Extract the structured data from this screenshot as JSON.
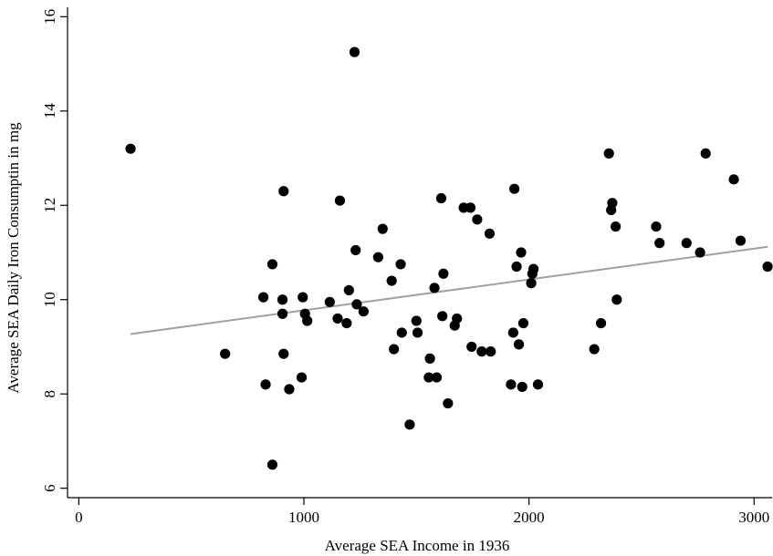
{
  "chart_data": {
    "type": "scatter",
    "title": "",
    "xlabel": "Average SEA Income in 1936",
    "ylabel": "Average SEA Daily Iron Consumptin in mg",
    "xlim": [
      -50,
      3080
    ],
    "ylim": [
      5.8,
      16.2
    ],
    "x_ticks": [
      0,
      1000,
      2000,
      3000
    ],
    "x_tick_labels": [
      "0",
      "1000",
      "2000",
      "3000"
    ],
    "y_ticks": [
      6,
      8,
      10,
      12,
      14,
      16
    ],
    "y_tick_labels": [
      "6",
      "8",
      "10",
      "12",
      "14",
      "16"
    ],
    "grid": false,
    "legend": "none",
    "colors": {
      "points": "#000000",
      "fit_line": "#a0a0a0",
      "axes": "#000000"
    },
    "series": [
      {
        "type": "scatter",
        "x": [
          230,
          650,
          820,
          830,
          860,
          860,
          905,
          905,
          910,
          910,
          935,
          990,
          995,
          1005,
          1015,
          1115,
          1150,
          1160,
          1190,
          1200,
          1225,
          1230,
          1235,
          1265,
          1330,
          1350,
          1390,
          1400,
          1430,
          1435,
          1470,
          1500,
          1505,
          1555,
          1560,
          1580,
          1590,
          1610,
          1615,
          1620,
          1640,
          1670,
          1680,
          1710,
          1740,
          1745,
          1770,
          1790,
          1825,
          1830,
          1920,
          1930,
          1935,
          1945,
          1955,
          1965,
          1970,
          1975,
          2010,
          2015,
          2020,
          2040,
          2290,
          2320,
          2355,
          2365,
          2370,
          2385,
          2390,
          2565,
          2580,
          2700,
          2760,
          2785,
          2910,
          2940,
          3060
        ],
        "y": [
          13.2,
          8.85,
          10.05,
          8.2,
          6.5,
          10.75,
          10.0,
          9.7,
          12.3,
          8.85,
          8.1,
          8.35,
          10.05,
          9.7,
          9.55,
          9.95,
          9.6,
          12.1,
          9.5,
          10.2,
          15.25,
          11.05,
          9.9,
          9.75,
          10.9,
          11.5,
          10.4,
          8.95,
          10.75,
          9.3,
          7.35,
          9.55,
          9.3,
          8.35,
          8.75,
          10.25,
          8.35,
          12.15,
          9.65,
          10.55,
          7.8,
          9.45,
          9.6,
          11.95,
          11.95,
          9.0,
          11.7,
          8.9,
          11.4,
          8.9,
          8.2,
          9.3,
          12.35,
          10.7,
          9.05,
          11.0,
          8.15,
          9.5,
          10.35,
          10.55,
          10.65,
          8.2,
          8.95,
          9.5,
          13.1,
          11.9,
          12.05,
          11.55,
          10.0,
          11.55,
          11.2,
          11.2,
          11.0,
          13.1,
          12.55,
          11.25,
          10.7
        ]
      },
      {
        "type": "line",
        "name": "",
        "x": [
          230,
          3060
        ],
        "y": [
          9.27,
          11.12
        ]
      }
    ]
  }
}
